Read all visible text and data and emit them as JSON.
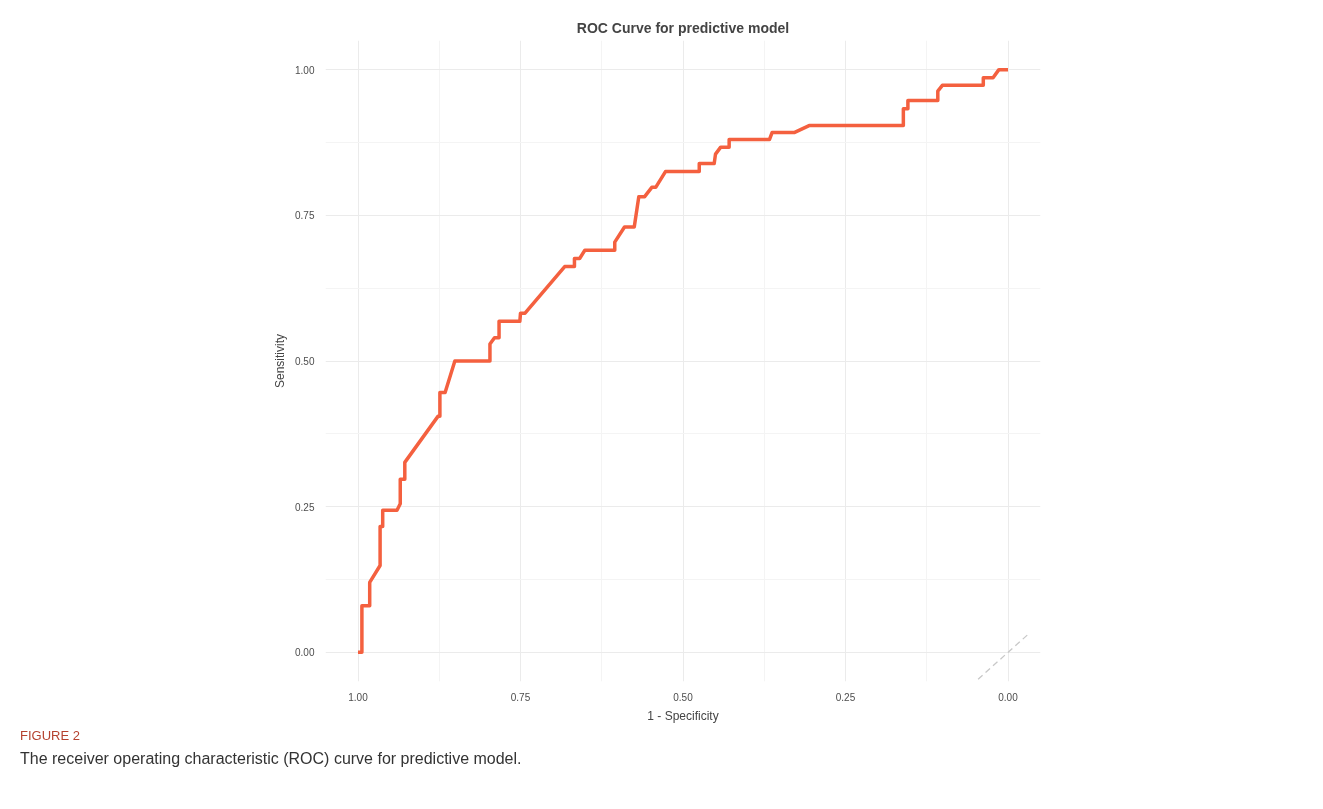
{
  "chart_data": {
    "type": "line",
    "title": "ROC Curve for predictive model",
    "xlabel": "1 - Specificity",
    "ylabel": "Sensitivity",
    "annotations": [
      "FIGURE 2",
      "The receiver operating characteristic (ROC) curve for predictive model."
    ],
    "xlim": [
      1.05,
      -0.05
    ],
    "ylim": [
      -0.05,
      1.05
    ],
    "xticks": [
      {
        "value": 1,
        "label": "1.00"
      },
      {
        "value": 0.75,
        "label": "0.75"
      },
      {
        "value": 0.5,
        "label": "0.50"
      },
      {
        "value": 0.25,
        "label": "0.25"
      },
      {
        "value": 0,
        "label": "0.00"
      }
    ],
    "yticks": [
      {
        "value": 0,
        "label": "0.00"
      },
      {
        "value": 0.25,
        "label": "0.25"
      },
      {
        "value": 0.5,
        "label": "0.50"
      },
      {
        "value": 0.75,
        "label": "0.75"
      },
      {
        "value": 1,
        "label": "1.00"
      }
    ],
    "grid": true,
    "line_style": "solid",
    "series": [
      {
        "color": "#f4603f",
        "x": [
          1.0,
          0.994,
          0.994,
          0.982,
          0.982,
          0.966,
          0.966,
          0.962,
          0.962,
          0.94,
          0.935,
          0.935,
          0.928,
          0.928,
          0.877,
          0.874,
          0.874,
          0.866,
          0.851,
          0.797,
          0.797,
          0.79,
          0.783,
          0.783,
          0.751,
          0.75,
          0.743,
          0.682,
          0.667,
          0.667,
          0.659,
          0.651,
          0.605,
          0.605,
          0.59,
          0.575,
          0.568,
          0.559,
          0.548,
          0.542,
          0.527,
          0.475,
          0.475,
          0.452,
          0.45,
          0.442,
          0.429,
          0.429,
          0.367,
          0.363,
          0.329,
          0.306,
          0.161,
          0.161,
          0.154,
          0.154,
          0.108,
          0.108,
          0.101,
          0.038,
          0.038,
          0.023,
          0.014,
          0.0
        ],
        "values": [
          0,
          0,
          0.08,
          0.08,
          0.12,
          0.149,
          0.216,
          0.216,
          0.244,
          0.244,
          0.255,
          0.297,
          0.297,
          0.326,
          0.405,
          0.405,
          0.446,
          0.446,
          0.5,
          0.5,
          0.529,
          0.54,
          0.54,
          0.568,
          0.568,
          0.582,
          0.582,
          0.662,
          0.662,
          0.676,
          0.676,
          0.69,
          0.69,
          0.704,
          0.73,
          0.73,
          0.782,
          0.782,
          0.798,
          0.798,
          0.825,
          0.825,
          0.839,
          0.839,
          0.855,
          0.867,
          0.867,
          0.88,
          0.88,
          0.892,
          0.892,
          0.904,
          0.904,
          0.933,
          0.933,
          0.947,
          0.947,
          0.963,
          0.973,
          0.973,
          0.986,
          0.986,
          1,
          1
        ]
      },
      {
        "color": "#c8c8c8",
        "line_style": "dashed",
        "x": [
          0.046,
          -0.032
        ],
        "values": [
          -0.046,
          0.032
        ]
      }
    ]
  }
}
